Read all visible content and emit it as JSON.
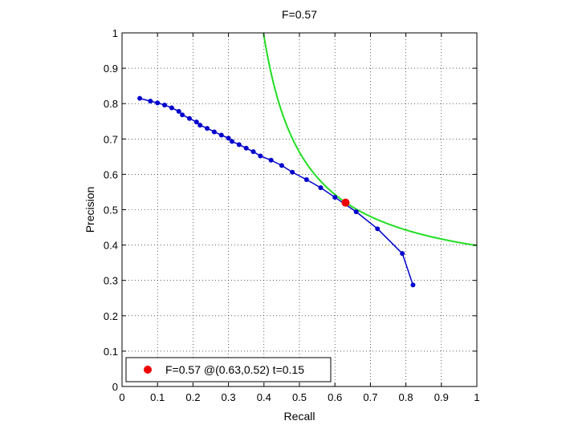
{
  "chart_data": {
    "type": "line",
    "title": "F=0.57",
    "xlabel": "Recall",
    "ylabel": "Precision",
    "xlim": [
      0,
      1
    ],
    "ylim": [
      0,
      1
    ],
    "xticks": [
      0,
      0.1,
      0.2,
      0.3,
      0.4,
      0.5,
      0.6,
      0.7,
      0.8,
      0.9,
      1
    ],
    "yticks": [
      0,
      0.1,
      0.2,
      0.3,
      0.4,
      0.5,
      0.6,
      0.7,
      0.8,
      0.9,
      1
    ],
    "xtick_labels": [
      "0",
      "0.1",
      "0.2",
      "0.3",
      "0.4",
      "0.5",
      "0.6",
      "0.7",
      "0.8",
      "0.9",
      "1"
    ],
    "ytick_labels": [
      "0",
      "0.1",
      "0.2",
      "0.3",
      "0.4",
      "0.5",
      "0.6",
      "0.7",
      "0.8",
      "0.9",
      "1"
    ],
    "grid": true,
    "legend_position": "bottom-left",
    "series": [
      {
        "name": "",
        "color": "#0000cc",
        "marker": "dot",
        "points": [
          [
            0.05,
            0.815
          ],
          [
            0.08,
            0.807
          ],
          [
            0.1,
            0.802
          ],
          [
            0.12,
            0.796
          ],
          [
            0.14,
            0.788
          ],
          [
            0.16,
            0.778
          ],
          [
            0.17,
            0.768
          ],
          [
            0.19,
            0.758
          ],
          [
            0.21,
            0.748
          ],
          [
            0.22,
            0.739
          ],
          [
            0.24,
            0.73
          ],
          [
            0.26,
            0.72
          ],
          [
            0.28,
            0.711
          ],
          [
            0.3,
            0.702
          ],
          [
            0.31,
            0.693
          ],
          [
            0.33,
            0.684
          ],
          [
            0.35,
            0.674
          ],
          [
            0.37,
            0.664
          ],
          [
            0.39,
            0.652
          ],
          [
            0.42,
            0.64
          ],
          [
            0.45,
            0.625
          ],
          [
            0.48,
            0.606
          ],
          [
            0.52,
            0.585
          ],
          [
            0.56,
            0.562
          ],
          [
            0.6,
            0.535
          ],
          [
            0.66,
            0.494
          ],
          [
            0.72,
            0.446
          ],
          [
            0.79,
            0.376
          ],
          [
            0.82,
            0.287
          ]
        ]
      }
    ],
    "iso_f_curve": {
      "f": 0.57,
      "color": "#22dd22"
    },
    "best_point": {
      "recall": 0.63,
      "precision": 0.52,
      "color": "#ee0000"
    },
    "legend": {
      "label": "F=0.57 @(0.63,0.52) t=0.15",
      "marker_color": "#ee0000"
    }
  }
}
